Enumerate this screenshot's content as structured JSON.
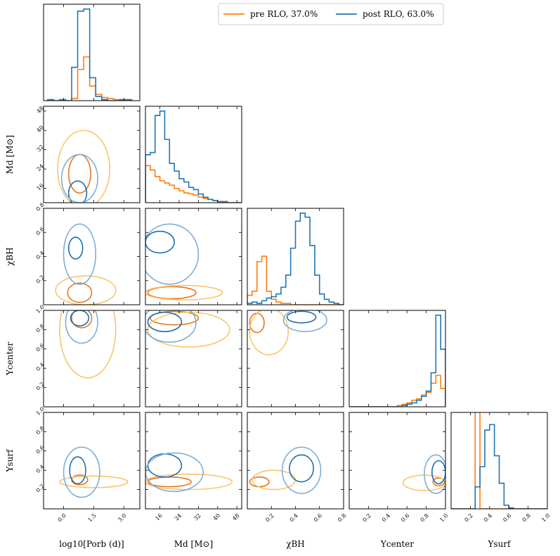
{
  "chart_data": {
    "type": "corner",
    "title": "",
    "legend": {
      "placement": "top-center",
      "entries": [
        {
          "label": "pre RLO, 37.0%",
          "color": "#ff7f0e"
        },
        {
          "label": "post RLO, 63.0%",
          "color": "#1f77b4"
        }
      ]
    },
    "colors": {
      "pre": "#ff7f0e",
      "post": "#1f77b4",
      "pre_light": "#fbc56a",
      "post_light": "#7eaed8",
      "pre_dark": "#e8751a",
      "post_dark": "#1f6fae"
    },
    "parameters": [
      {
        "key": "logP",
        "label": "log10[Porb (d)]",
        "xlim": [
          -1.0,
          3.8
        ],
        "ticks": [
          0.0,
          1.5,
          3.0
        ],
        "tick_labels": [
          "0.0",
          "1.5",
          "3.0"
        ]
      },
      {
        "key": "Md",
        "label": "Md [M⊙]",
        "xlim": [
          10,
          50
        ],
        "ticks": [
          16,
          24,
          32,
          40,
          48
        ],
        "tick_labels": [
          "16",
          "24",
          "32",
          "40",
          "48"
        ]
      },
      {
        "key": "chi",
        "label": "χBH",
        "xlim": [
          0.0,
          0.8
        ],
        "ticks": [
          0.2,
          0.4,
          0.6,
          0.8
        ],
        "tick_labels": [
          "0.2",
          "0.4",
          "0.6",
          "0.8"
        ]
      },
      {
        "key": "Yc",
        "label": "Ycenter",
        "xlim": [
          0.0,
          1.0
        ],
        "ticks": [
          0.2,
          0.4,
          0.6,
          0.8,
          1.0
        ],
        "tick_labels": [
          "0.2",
          "0.4",
          "0.6",
          "0.8",
          "1.0"
        ]
      },
      {
        "key": "Ys",
        "label": "Ysurf",
        "xlim": [
          0.0,
          1.0
        ],
        "ticks": [
          0.2,
          0.4,
          0.6,
          0.8,
          1.0
        ],
        "tick_labels": [
          "0.2",
          "0.4",
          "0.6",
          "0.8",
          "1.0"
        ]
      }
    ],
    "histograms": {
      "logP": {
        "edges": [
          -0.8,
          -0.5,
          -0.2,
          0.1,
          0.4,
          0.7,
          1.0,
          1.3,
          1.6,
          1.9,
          2.2,
          2.5,
          2.8,
          3.1,
          3.4
        ],
        "pre": [
          0,
          0,
          0,
          0,
          2,
          30,
          42,
          14,
          6,
          3,
          2,
          1,
          1,
          0
        ],
        "post": [
          1,
          0,
          1,
          0,
          32,
          86,
          88,
          22,
          4,
          1,
          0,
          0,
          1,
          1
        ]
      },
      "Md": {
        "edges": [
          10,
          12,
          14,
          16,
          18,
          20,
          22,
          24,
          26,
          28,
          30,
          32,
          34,
          36,
          38,
          40,
          42,
          44,
          46,
          48,
          50
        ],
        "pre": [
          34,
          30,
          24,
          20,
          18,
          16,
          13,
          11,
          9,
          8,
          7,
          5,
          4,
          3,
          2,
          1,
          1,
          0,
          0,
          0
        ],
        "post": [
          44,
          46,
          80,
          84,
          58,
          36,
          29,
          22,
          19,
          14,
          12,
          8,
          5,
          3,
          2,
          1,
          1,
          0,
          0,
          0
        ]
      },
      "chi": {
        "edges": [
          0.0,
          0.04,
          0.08,
          0.12,
          0.16,
          0.2,
          0.24,
          0.28,
          0.32,
          0.36,
          0.4,
          0.44,
          0.48,
          0.52,
          0.56,
          0.6,
          0.64,
          0.68,
          0.72,
          0.76,
          0.8
        ],
        "pre": [
          7,
          10,
          32,
          36,
          10,
          4,
          2,
          1,
          1,
          0,
          0,
          0,
          0,
          0,
          0,
          0,
          0,
          0,
          0,
          0
        ],
        "post": [
          1,
          2,
          1,
          3,
          5,
          6,
          8,
          13,
          22,
          42,
          62,
          68,
          65,
          44,
          22,
          8,
          4,
          2,
          1,
          0
        ]
      },
      "Yc": {
        "edges": [
          0.0,
          0.05,
          0.1,
          0.15,
          0.2,
          0.25,
          0.3,
          0.35,
          0.4,
          0.45,
          0.5,
          0.55,
          0.6,
          0.65,
          0.7,
          0.75,
          0.8,
          0.85,
          0.9,
          0.95,
          1.0
        ],
        "pre": [
          0,
          0,
          0,
          0,
          0,
          0,
          0,
          0,
          0,
          0,
          1,
          2,
          3,
          5,
          6,
          9,
          11,
          18,
          24,
          14
        ],
        "post": [
          0,
          0,
          0,
          0,
          0,
          0,
          0,
          0,
          0,
          0,
          0,
          1,
          2,
          3,
          5,
          8,
          12,
          26,
          70,
          44
        ]
      },
      "Ys": {
        "edges": [
          0.0,
          0.05,
          0.1,
          0.15,
          0.2,
          0.25,
          0.3,
          0.35,
          0.4,
          0.45,
          0.5,
          0.55,
          0.6,
          0.65,
          0.7,
          0.75,
          0.8,
          0.85,
          0.9,
          0.95,
          1.0
        ],
        "pre": [
          0,
          0,
          0,
          0,
          0,
          1000,
          0,
          0,
          0,
          0,
          0,
          0,
          0,
          0,
          0,
          0,
          0,
          0,
          0,
          0
        ],
        "post": [
          0,
          0,
          0,
          0,
          0,
          24,
          46,
          86,
          92,
          58,
          28,
          4,
          1,
          0,
          0,
          0,
          0,
          0,
          0,
          0
        ]
      }
    },
    "contours": {
      "Md|logP": {
        "pre": [
          [
            0.8,
            22,
            0.55,
            8,
            "dark"
          ],
          [
            1.0,
            24,
            1.3,
            16,
            "light"
          ]
        ],
        "post": [
          [
            0.7,
            14,
            0.45,
            5,
            "dark"
          ],
          [
            0.8,
            20,
            0.9,
            10,
            "light"
          ]
        ]
      },
      "chi|logP": {
        "pre": [
          [
            0.8,
            0.1,
            0.6,
            0.08,
            "dark"
          ],
          [
            1.1,
            0.12,
            1.5,
            0.12,
            "light"
          ]
        ],
        "post": [
          [
            0.6,
            0.47,
            0.35,
            0.09,
            "dark"
          ],
          [
            0.8,
            0.42,
            0.8,
            0.25,
            "light"
          ]
        ]
      },
      "Yc|logP": {
        "pre": [
          [
            0.9,
            0.92,
            0.5,
            0.1,
            "dark"
          ],
          [
            1.2,
            0.8,
            1.4,
            0.5,
            "light"
          ]
        ],
        "post": [
          [
            0.8,
            0.92,
            0.45,
            0.08,
            "dark"
          ],
          [
            0.9,
            0.88,
            0.8,
            0.22,
            "light"
          ]
        ]
      },
      "Ys|logP": {
        "pre": [
          [
            0.8,
            0.3,
            0.4,
            0.05,
            "dark"
          ],
          [
            1.5,
            0.28,
            1.7,
            0.06,
            "light"
          ]
        ],
        "post": [
          [
            0.7,
            0.4,
            0.4,
            0.14,
            "dark"
          ],
          [
            0.9,
            0.38,
            0.9,
            0.26,
            "light"
          ]
        ]
      },
      "chi|Md": {
        "pre": [
          [
            21,
            0.1,
            10,
            0.05,
            "dark"
          ],
          [
            26,
            0.1,
            16,
            0.06,
            "light"
          ]
        ],
        "post": [
          [
            16,
            0.52,
            6,
            0.09,
            "dark"
          ],
          [
            20,
            0.42,
            12,
            0.25,
            "light"
          ]
        ]
      },
      "Yc|Md": {
        "pre": [
          [
            22,
            0.92,
            10,
            0.07,
            "dark"
          ],
          [
            28,
            0.8,
            17,
            0.18,
            "light"
          ]
        ],
        "post": [
          [
            18,
            0.88,
            7,
            0.1,
            "dark"
          ],
          [
            20,
            0.87,
            11,
            0.2,
            "light"
          ]
        ]
      },
      "Ys|Md": {
        "pre": [
          [
            20,
            0.28,
            9,
            0.05,
            "dark"
          ],
          [
            28,
            0.28,
            18,
            0.08,
            "light"
          ]
        ],
        "post": [
          [
            18,
            0.45,
            7,
            0.12,
            "dark"
          ],
          [
            22,
            0.38,
            12,
            0.2,
            "light"
          ]
        ]
      },
      "Yc|chi": {
        "pre": [
          [
            0.08,
            0.87,
            0.06,
            0.1,
            "dark"
          ],
          [
            0.18,
            0.78,
            0.16,
            0.24,
            "light"
          ]
        ],
        "post": [
          [
            0.45,
            0.93,
            0.12,
            0.06,
            "dark"
          ],
          [
            0.48,
            0.9,
            0.18,
            0.12,
            "light"
          ]
        ]
      },
      "Ys|chi": {
        "pre": [
          [
            0.1,
            0.28,
            0.08,
            0.05,
            "dark"
          ],
          [
            0.22,
            0.3,
            0.18,
            0.1,
            "light"
          ]
        ],
        "post": [
          [
            0.45,
            0.42,
            0.1,
            0.14,
            "dark"
          ],
          [
            0.45,
            0.4,
            0.16,
            0.24,
            "light"
          ]
        ]
      },
      "Ys|Yc": {
        "pre": [
          [
            0.93,
            0.28,
            0.06,
            0.04,
            "dark"
          ],
          [
            0.78,
            0.27,
            0.22,
            0.08,
            "light"
          ]
        ],
        "post": [
          [
            0.93,
            0.38,
            0.07,
            0.12,
            "dark"
          ],
          [
            0.9,
            0.36,
            0.12,
            0.2,
            "light"
          ]
        ]
      }
    }
  }
}
